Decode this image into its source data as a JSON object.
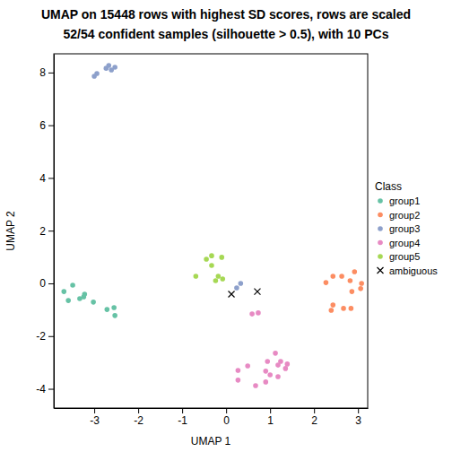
{
  "chart_data": {
    "type": "scatter",
    "title": "UMAP on 15448 rows with highest SD scores, rows are scaled",
    "subtitle": "52/54 confident samples (silhouette > 0.5), with 10 PCs",
    "x_label": "UMAP 1",
    "y_label": "UMAP 2",
    "legend_title": "Class",
    "legend": "right",
    "xlim": [
      -3.92,
      3.22
    ],
    "ylim": [
      -4.73,
      8.71
    ],
    "xticks": [
      -3,
      -2,
      -1,
      0,
      1,
      2,
      3
    ],
    "yticks": [
      -4,
      -2,
      0,
      2,
      4,
      6,
      8
    ],
    "series": [
      {
        "name": "group1",
        "color": "#66C2A5",
        "marker": "circle",
        "x": [
          -3.69,
          -3.59,
          -3.49,
          -3.33,
          -3.22,
          -3.02,
          -2.71,
          -2.55,
          -2.53,
          -3.24
        ],
        "values": [
          -0.31,
          -0.65,
          -0.07,
          -0.58,
          -0.41,
          -0.71,
          -0.99,
          -0.92,
          -1.22,
          -0.51
        ]
      },
      {
        "name": "group2",
        "color": "#FC8D62",
        "marker": "circle",
        "x": [
          2.27,
          2.43,
          2.63,
          2.92,
          2.86,
          3.06,
          3.08,
          2.43,
          2.39,
          2.67,
          2.84,
          2.82
        ],
        "values": [
          0.03,
          0.27,
          0.27,
          0.44,
          -0.31,
          -0.2,
          0.0,
          -0.82,
          -1.02,
          -0.95,
          -0.95,
          0.1
        ]
      },
      {
        "name": "group3",
        "color": "#8DA0CB",
        "marker": "circle",
        "x": [
          -3.0,
          -2.94,
          -2.73,
          -2.67,
          -2.61,
          -2.53,
          0.24,
          0.33
        ],
        "values": [
          7.86,
          7.96,
          8.16,
          8.27,
          8.1,
          8.2,
          -0.17,
          0.0
        ]
      },
      {
        "name": "group4",
        "color": "#E78AC3",
        "marker": "circle",
        "x": [
          0.59,
          0.73,
          1.12,
          0.49,
          0.27,
          0.27,
          0.67,
          0.9,
          0.9,
          0.94,
          1.18,
          1.24,
          1.39,
          1.35,
          1.0,
          1.18
        ],
        "values": [
          -1.16,
          -1.12,
          -2.65,
          -3.13,
          -3.3,
          -3.67,
          -3.88,
          -3.74,
          -3.33,
          -2.96,
          -3.1,
          -2.96,
          -3.06,
          -3.23,
          -3.47,
          -3.54
        ]
      },
      {
        "name": "group5",
        "color": "#A6D854",
        "marker": "circle",
        "x": [
          -0.69,
          -0.45,
          -0.33,
          -0.33,
          -0.1,
          -0.18,
          -0.24,
          -0.08
        ],
        "values": [
          0.27,
          0.92,
          1.05,
          0.68,
          0.99,
          0.27,
          0.1,
          0.17
        ]
      },
      {
        "name": "ambiguous",
        "color": "#000000",
        "marker": "cross",
        "x": [
          0.12,
          0.71
        ],
        "values": [
          -0.41,
          -0.31
        ]
      }
    ]
  }
}
